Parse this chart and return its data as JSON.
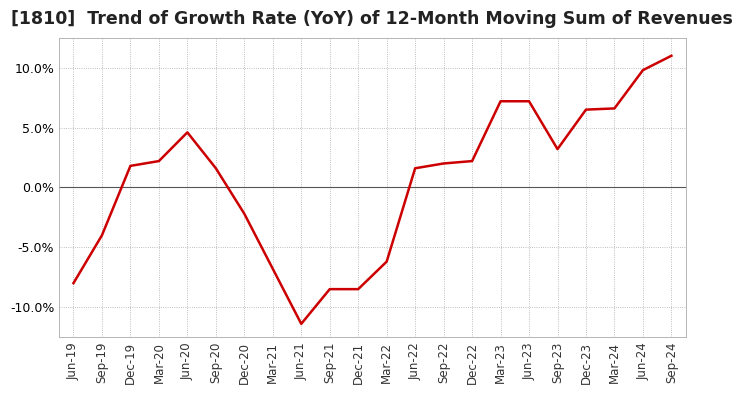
{
  "title": "[1810]  Trend of Growth Rate (YoY) of 12-Month Moving Sum of Revenues",
  "title_fontsize": 12.5,
  "line_color": "#cc0000",
  "background_color": "#ffffff",
  "plot_background": "#ffffff",
  "grid_color": "#aaaaaa",
  "zero_line_color": "#555555",
  "ylim": [
    -0.125,
    0.125
  ],
  "yticks": [
    -0.1,
    -0.05,
    0.0,
    0.05,
    0.1
  ],
  "x_labels": [
    "Jun-19",
    "Sep-19",
    "Dec-19",
    "Mar-20",
    "Jun-20",
    "Sep-20",
    "Dec-20",
    "Mar-21",
    "Jun-21",
    "Sep-21",
    "Dec-21",
    "Mar-22",
    "Jun-22",
    "Sep-22",
    "Dec-22",
    "Mar-23",
    "Jun-23",
    "Sep-23",
    "Dec-23",
    "Mar-24",
    "Jun-24",
    "Sep-24"
  ],
  "data_points": [
    [
      "Jun-19",
      -0.08
    ],
    [
      "Sep-19",
      -0.04
    ],
    [
      "Dec-19",
      0.018
    ],
    [
      "Mar-20",
      0.022
    ],
    [
      "Jun-20",
      0.046
    ],
    [
      "Sep-20",
      0.016
    ],
    [
      "Dec-20",
      -0.022
    ],
    [
      "Mar-21",
      -0.068
    ],
    [
      "Jun-21",
      -0.114
    ],
    [
      "Sep-21",
      -0.085
    ],
    [
      "Dec-21",
      -0.085
    ],
    [
      "Mar-22",
      -0.062
    ],
    [
      "Jun-22",
      0.016
    ],
    [
      "Sep-22",
      0.02
    ],
    [
      "Dec-22",
      0.022
    ],
    [
      "Mar-23",
      0.072
    ],
    [
      "Jun-23",
      0.072
    ],
    [
      "Sep-23",
      0.032
    ],
    [
      "Dec-23",
      0.065
    ],
    [
      "Mar-24",
      0.066
    ],
    [
      "Jun-24",
      0.098
    ],
    [
      "Sep-24",
      0.11
    ]
  ]
}
